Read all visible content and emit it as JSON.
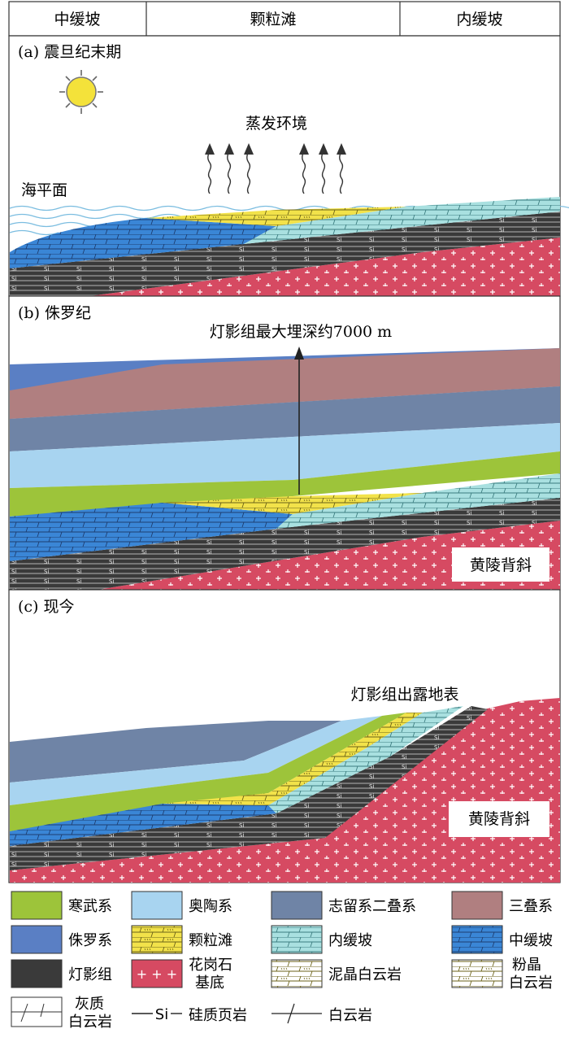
{
  "header": {
    "left": "中缓坡",
    "center": "颗粒滩",
    "right": "内缓坡"
  },
  "panels": {
    "a": {
      "title": "(a) 震旦纪末期",
      "evaporation_label": "蒸发环境",
      "sea_level_label": "海平面",
      "sun_icon": "sun-icon"
    },
    "b": {
      "title": "(b) 侏罗纪",
      "burial_label": "灯影组最大埋深约7000 m",
      "anticline_label": "黄陵背斜"
    },
    "c": {
      "title": "(c) 现今",
      "exposure_label": "灯影组出露地表",
      "anticline_label": "黄陵背斜"
    }
  },
  "legend": {
    "items": [
      {
        "label": "寒武系",
        "color": "#9dc43a"
      },
      {
        "label": "奥陶系",
        "color": "#a8d4f0"
      },
      {
        "label": "志留系二叠系",
        "color": "#6f84a6"
      },
      {
        "label": "三叠系",
        "color": "#b07f80"
      },
      {
        "label": "侏罗系",
        "color": "#5a7fc4"
      },
      {
        "label": "颗粒滩",
        "color": "#f2e24a"
      },
      {
        "label": "内缓坡",
        "color": "#a9e0e0"
      },
      {
        "label": "中缓坡",
        "color": "#3a86d6"
      },
      {
        "label": "灯影组",
        "color": "#3a3a3a"
      },
      {
        "label": "花岗石",
        "color": "#d64a62"
      },
      {
        "label_line2": "基底"
      },
      {
        "label": "泥晶白云岩"
      },
      {
        "label": "粉晶"
      },
      {
        "label_line2": "白云岩"
      },
      {
        "label": "灰质"
      },
      {
        "label_line2": "白云岩"
      },
      {
        "label": "硅质页岩"
      },
      {
        "label": "白云岩"
      }
    ],
    "si_symbol": "Si"
  }
}
